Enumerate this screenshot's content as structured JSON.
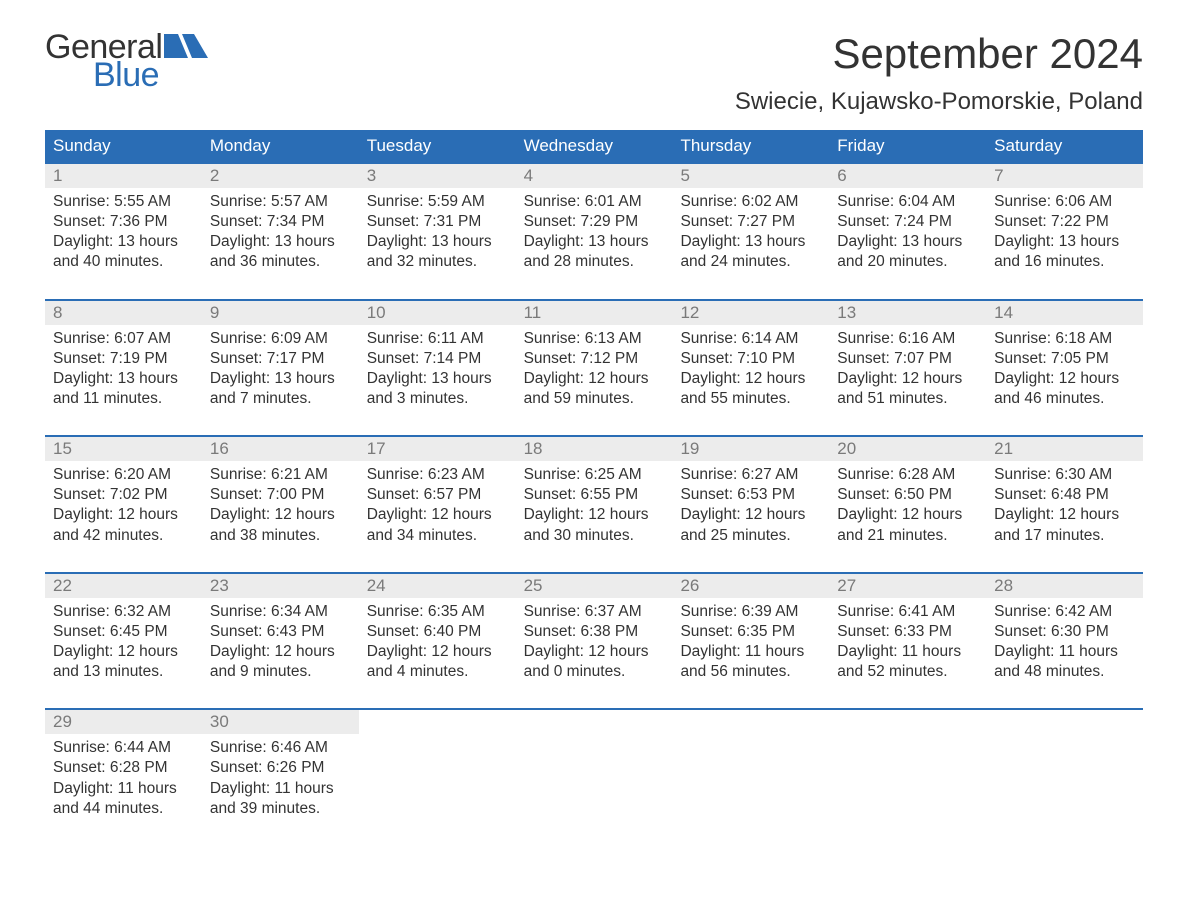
{
  "logo": {
    "text_general": "General",
    "text_blue": "Blue",
    "flag_color": "#2a6db5"
  },
  "title": "September 2024",
  "location": "Swiecie, Kujawsko-Pomorskie, Poland",
  "colors": {
    "header_bg": "#2a6db5",
    "header_text": "#ffffff",
    "daynum_bg": "#ececec",
    "daynum_text": "#7a7a7a",
    "body_text": "#333333",
    "week_border": "#2a6db5",
    "page_bg": "#ffffff"
  },
  "day_names": [
    "Sunday",
    "Monday",
    "Tuesday",
    "Wednesday",
    "Thursday",
    "Friday",
    "Saturday"
  ],
  "weeks": [
    [
      {
        "num": "1",
        "sunrise": "Sunrise: 5:55 AM",
        "sunset": "Sunset: 7:36 PM",
        "dl1": "Daylight: 13 hours",
        "dl2": "and 40 minutes."
      },
      {
        "num": "2",
        "sunrise": "Sunrise: 5:57 AM",
        "sunset": "Sunset: 7:34 PM",
        "dl1": "Daylight: 13 hours",
        "dl2": "and 36 minutes."
      },
      {
        "num": "3",
        "sunrise": "Sunrise: 5:59 AM",
        "sunset": "Sunset: 7:31 PM",
        "dl1": "Daylight: 13 hours",
        "dl2": "and 32 minutes."
      },
      {
        "num": "4",
        "sunrise": "Sunrise: 6:01 AM",
        "sunset": "Sunset: 7:29 PM",
        "dl1": "Daylight: 13 hours",
        "dl2": "and 28 minutes."
      },
      {
        "num": "5",
        "sunrise": "Sunrise: 6:02 AM",
        "sunset": "Sunset: 7:27 PM",
        "dl1": "Daylight: 13 hours",
        "dl2": "and 24 minutes."
      },
      {
        "num": "6",
        "sunrise": "Sunrise: 6:04 AM",
        "sunset": "Sunset: 7:24 PM",
        "dl1": "Daylight: 13 hours",
        "dl2": "and 20 minutes."
      },
      {
        "num": "7",
        "sunrise": "Sunrise: 6:06 AM",
        "sunset": "Sunset: 7:22 PM",
        "dl1": "Daylight: 13 hours",
        "dl2": "and 16 minutes."
      }
    ],
    [
      {
        "num": "8",
        "sunrise": "Sunrise: 6:07 AM",
        "sunset": "Sunset: 7:19 PM",
        "dl1": "Daylight: 13 hours",
        "dl2": "and 11 minutes."
      },
      {
        "num": "9",
        "sunrise": "Sunrise: 6:09 AM",
        "sunset": "Sunset: 7:17 PM",
        "dl1": "Daylight: 13 hours",
        "dl2": "and 7 minutes."
      },
      {
        "num": "10",
        "sunrise": "Sunrise: 6:11 AM",
        "sunset": "Sunset: 7:14 PM",
        "dl1": "Daylight: 13 hours",
        "dl2": "and 3 minutes."
      },
      {
        "num": "11",
        "sunrise": "Sunrise: 6:13 AM",
        "sunset": "Sunset: 7:12 PM",
        "dl1": "Daylight: 12 hours",
        "dl2": "and 59 minutes."
      },
      {
        "num": "12",
        "sunrise": "Sunrise: 6:14 AM",
        "sunset": "Sunset: 7:10 PM",
        "dl1": "Daylight: 12 hours",
        "dl2": "and 55 minutes."
      },
      {
        "num": "13",
        "sunrise": "Sunrise: 6:16 AM",
        "sunset": "Sunset: 7:07 PM",
        "dl1": "Daylight: 12 hours",
        "dl2": "and 51 minutes."
      },
      {
        "num": "14",
        "sunrise": "Sunrise: 6:18 AM",
        "sunset": "Sunset: 7:05 PM",
        "dl1": "Daylight: 12 hours",
        "dl2": "and 46 minutes."
      }
    ],
    [
      {
        "num": "15",
        "sunrise": "Sunrise: 6:20 AM",
        "sunset": "Sunset: 7:02 PM",
        "dl1": "Daylight: 12 hours",
        "dl2": "and 42 minutes."
      },
      {
        "num": "16",
        "sunrise": "Sunrise: 6:21 AM",
        "sunset": "Sunset: 7:00 PM",
        "dl1": "Daylight: 12 hours",
        "dl2": "and 38 minutes."
      },
      {
        "num": "17",
        "sunrise": "Sunrise: 6:23 AM",
        "sunset": "Sunset: 6:57 PM",
        "dl1": "Daylight: 12 hours",
        "dl2": "and 34 minutes."
      },
      {
        "num": "18",
        "sunrise": "Sunrise: 6:25 AM",
        "sunset": "Sunset: 6:55 PM",
        "dl1": "Daylight: 12 hours",
        "dl2": "and 30 minutes."
      },
      {
        "num": "19",
        "sunrise": "Sunrise: 6:27 AM",
        "sunset": "Sunset: 6:53 PM",
        "dl1": "Daylight: 12 hours",
        "dl2": "and 25 minutes."
      },
      {
        "num": "20",
        "sunrise": "Sunrise: 6:28 AM",
        "sunset": "Sunset: 6:50 PM",
        "dl1": "Daylight: 12 hours",
        "dl2": "and 21 minutes."
      },
      {
        "num": "21",
        "sunrise": "Sunrise: 6:30 AM",
        "sunset": "Sunset: 6:48 PM",
        "dl1": "Daylight: 12 hours",
        "dl2": "and 17 minutes."
      }
    ],
    [
      {
        "num": "22",
        "sunrise": "Sunrise: 6:32 AM",
        "sunset": "Sunset: 6:45 PM",
        "dl1": "Daylight: 12 hours",
        "dl2": "and 13 minutes."
      },
      {
        "num": "23",
        "sunrise": "Sunrise: 6:34 AM",
        "sunset": "Sunset: 6:43 PM",
        "dl1": "Daylight: 12 hours",
        "dl2": "and 9 minutes."
      },
      {
        "num": "24",
        "sunrise": "Sunrise: 6:35 AM",
        "sunset": "Sunset: 6:40 PM",
        "dl1": "Daylight: 12 hours",
        "dl2": "and 4 minutes."
      },
      {
        "num": "25",
        "sunrise": "Sunrise: 6:37 AM",
        "sunset": "Sunset: 6:38 PM",
        "dl1": "Daylight: 12 hours",
        "dl2": "and 0 minutes."
      },
      {
        "num": "26",
        "sunrise": "Sunrise: 6:39 AM",
        "sunset": "Sunset: 6:35 PM",
        "dl1": "Daylight: 11 hours",
        "dl2": "and 56 minutes."
      },
      {
        "num": "27",
        "sunrise": "Sunrise: 6:41 AM",
        "sunset": "Sunset: 6:33 PM",
        "dl1": "Daylight: 11 hours",
        "dl2": "and 52 minutes."
      },
      {
        "num": "28",
        "sunrise": "Sunrise: 6:42 AM",
        "sunset": "Sunset: 6:30 PM",
        "dl1": "Daylight: 11 hours",
        "dl2": "and 48 minutes."
      }
    ],
    [
      {
        "num": "29",
        "sunrise": "Sunrise: 6:44 AM",
        "sunset": "Sunset: 6:28 PM",
        "dl1": "Daylight: 11 hours",
        "dl2": "and 44 minutes."
      },
      {
        "num": "30",
        "sunrise": "Sunrise: 6:46 AM",
        "sunset": "Sunset: 6:26 PM",
        "dl1": "Daylight: 11 hours",
        "dl2": "and 39 minutes."
      },
      {
        "empty": true
      },
      {
        "empty": true
      },
      {
        "empty": true
      },
      {
        "empty": true
      },
      {
        "empty": true
      }
    ]
  ]
}
